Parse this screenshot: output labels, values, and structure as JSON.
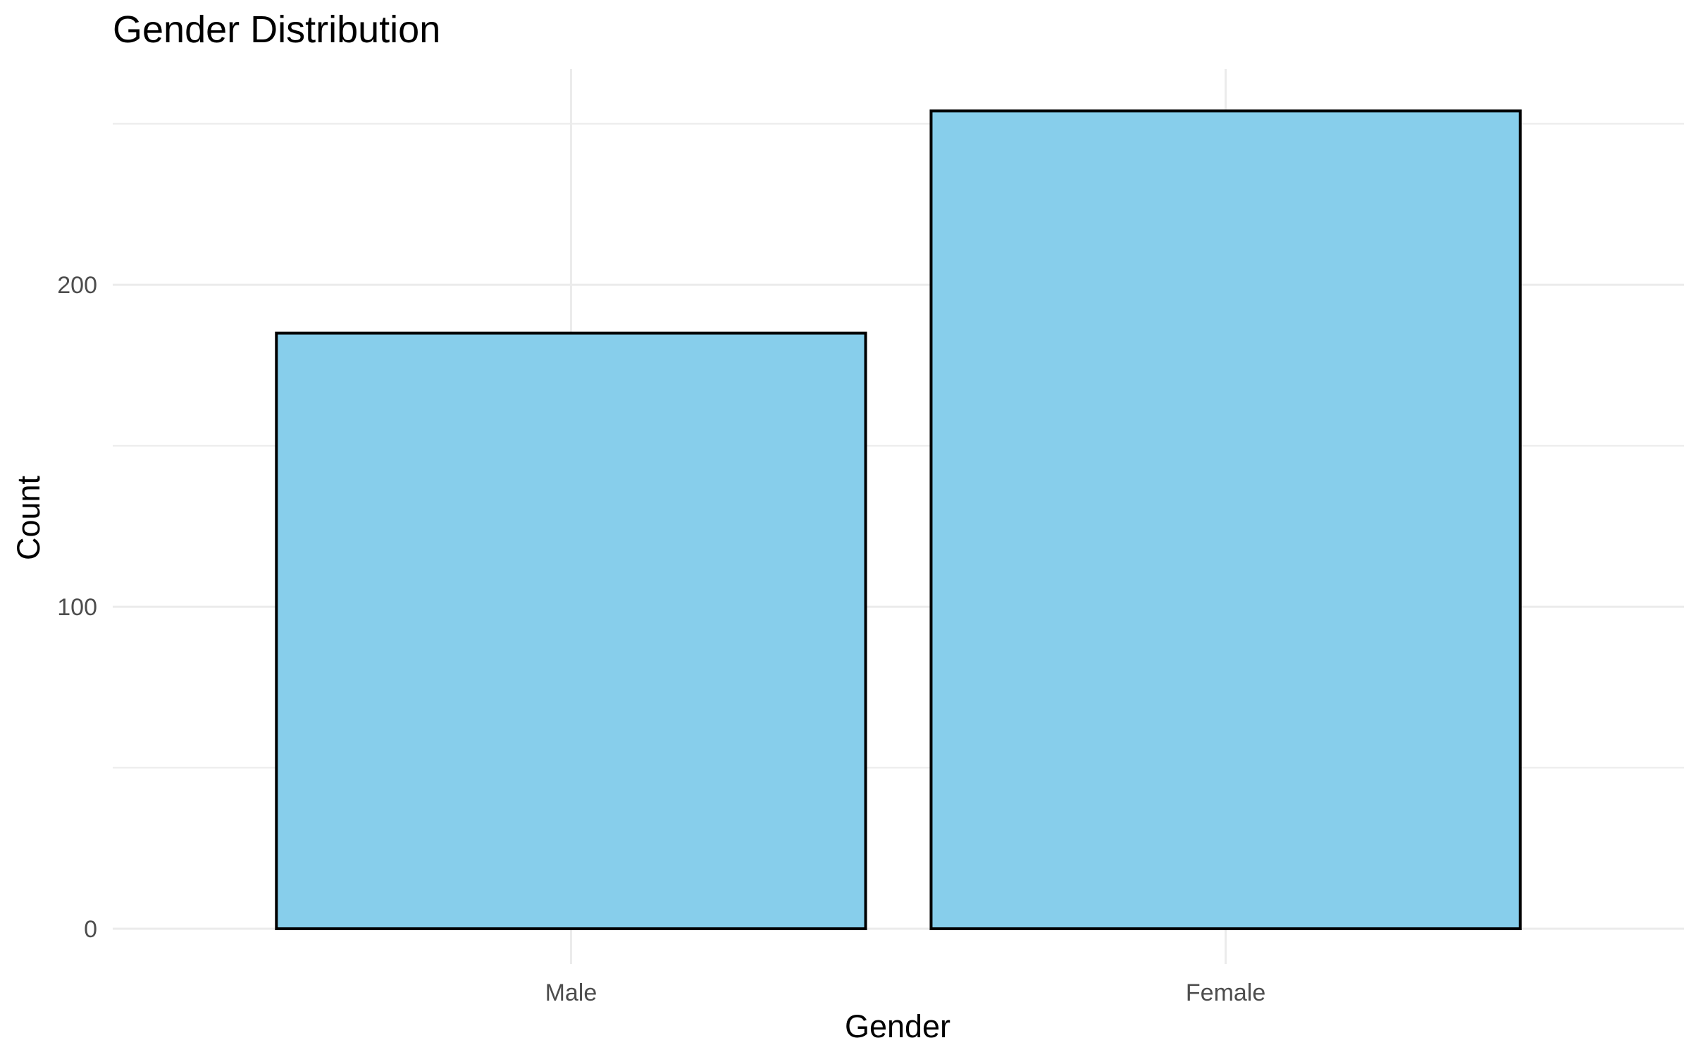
{
  "chart_data": {
    "type": "bar",
    "title": "Gender Distribution",
    "xlabel": "Gender",
    "ylabel": "Count",
    "categories": [
      "Male",
      "Female"
    ],
    "values": [
      185,
      254
    ],
    "ylim": [
      0,
      267
    ],
    "yticks": [
      0,
      100,
      200
    ],
    "y_minor_ticks": [
      50,
      150,
      250
    ],
    "grid": true,
    "legend": "none",
    "bar_color": "#87CEEB",
    "bar_outline_color": "#000000"
  }
}
